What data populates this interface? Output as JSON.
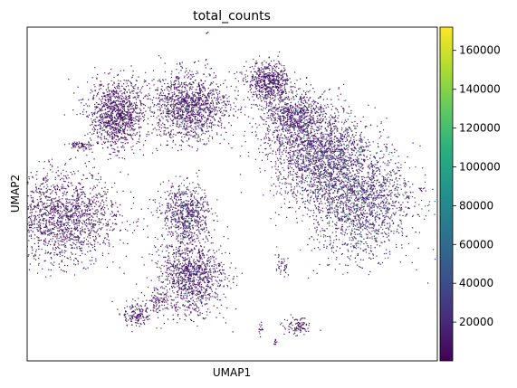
{
  "chart_data": {
    "type": "scatter",
    "title": "total_counts",
    "xlabel": "UMAP1",
    "ylabel": "UMAP2",
    "xticks": [],
    "yticks": [],
    "grid": false,
    "legend": "none",
    "colormap": "viridis",
    "colorbar": {
      "range": [
        0,
        172000
      ],
      "ticks": [
        20000,
        40000,
        60000,
        80000,
        100000,
        120000,
        140000,
        160000
      ],
      "tick_labels": [
        "20000",
        "40000",
        "60000",
        "80000",
        "100000",
        "120000",
        "140000",
        "160000"
      ]
    },
    "dominant_color": "#440154",
    "clusters": [
      {
        "center": [
          1.0,
          3.6
        ],
        "spread": [
          0.8,
          0.75
        ],
        "count": 1100,
        "value_mean": 9000
      },
      {
        "center": [
          5.1,
          4.0
        ],
        "spread": [
          1.1,
          0.75
        ],
        "count": 1300,
        "value_mean": 11000
      },
      {
        "center": [
          9.5,
          5.1
        ],
        "spread": [
          0.6,
          0.45
        ],
        "count": 550,
        "value_mean": 9000
      },
      {
        "center": [
          10.9,
          3.6
        ],
        "spread": [
          0.9,
          0.6
        ],
        "count": 700,
        "value_mean": 12000
      },
      {
        "center": [
          12.3,
          1.9
        ],
        "spread": [
          1.4,
          1.05
        ],
        "count": 1700,
        "value_mean": 16000
      },
      {
        "center": [
          14.6,
          -0.2
        ],
        "spread": [
          1.5,
          1.25
        ],
        "count": 2200,
        "value_mean": 22000
      },
      {
        "center": [
          4.9,
          -0.8
        ],
        "spread": [
          0.7,
          0.65
        ],
        "count": 650,
        "value_mean": 16000
      },
      {
        "center": [
          -2.0,
          -1.0
        ],
        "spread": [
          1.6,
          1.0
        ],
        "count": 1600,
        "value_mean": 10000
      },
      {
        "center": [
          5.2,
          -3.6
        ],
        "spread": [
          0.9,
          0.85
        ],
        "count": 1100,
        "value_mean": 11000
      },
      {
        "center": [
          -1.0,
          2.2
        ],
        "spread": [
          0.4,
          0.09
        ],
        "count": 70,
        "value_mean": 9000
      },
      {
        "center": [
          2.1,
          -5.4
        ],
        "spread": [
          0.4,
          0.28
        ],
        "count": 160,
        "value_mean": 9000
      },
      {
        "center": [
          3.3,
          -4.8
        ],
        "spread": [
          0.3,
          0.3
        ],
        "count": 90,
        "value_mean": 9000
      },
      {
        "center": [
          11.1,
          -5.9
        ],
        "spread": [
          0.4,
          0.2
        ],
        "count": 100,
        "value_mean": 9000
      },
      {
        "center": [
          10.3,
          -3.2
        ],
        "spread": [
          0.2,
          0.25
        ],
        "count": 40,
        "value_mean": 9000
      },
      {
        "center": [
          9.1,
          -6.1
        ],
        "spread": [
          0.08,
          0.15
        ],
        "count": 15,
        "value_mean": 9000
      },
      {
        "center": [
          9.9,
          -6.6
        ],
        "spread": [
          0.06,
          0.1
        ],
        "count": 10,
        "value_mean": 9000
      },
      {
        "center": [
          18.1,
          0.2
        ],
        "spread": [
          0.1,
          0.06
        ],
        "count": 8,
        "value_mean": 9000
      },
      {
        "center": [
          6.1,
          7.2
        ],
        "spread": [
          0.05,
          0.05
        ],
        "count": 3,
        "value_mean": 9000
      }
    ],
    "xlim": [
      -4.0,
      19.0
    ],
    "ylim": [
      -7.5,
      7.5
    ]
  }
}
